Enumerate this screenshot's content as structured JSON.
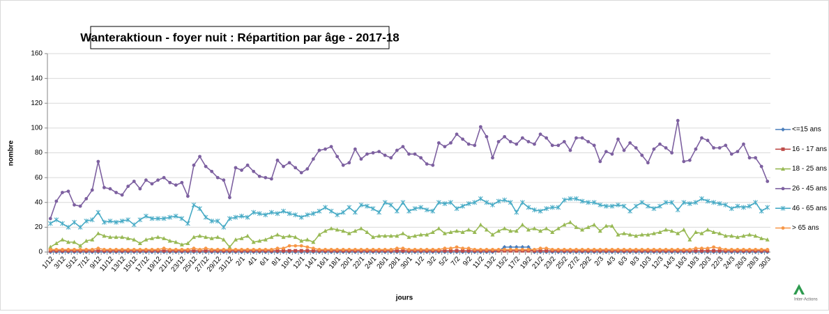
{
  "chart_data": {
    "type": "line",
    "title": "Wanteraktioun - foyer nuit : Répartition par âge - 2017-18",
    "ylabel": "nombre",
    "xlabel": "jours",
    "logo": "Inter-Actions",
    "ylim": [
      0,
      160
    ],
    "yticks": [
      0,
      20,
      40,
      60,
      80,
      100,
      120,
      140,
      160
    ],
    "grid": true,
    "legend": "right",
    "categories": [
      "1/12",
      null,
      "3/12",
      null,
      "5/12",
      null,
      "7/12",
      null,
      "9/12",
      null,
      "11/12",
      null,
      "13/12",
      null,
      "15/12",
      null,
      "17/12",
      null,
      "19/12",
      null,
      "21/12",
      null,
      "23/12",
      null,
      "25/12",
      null,
      "27/12",
      null,
      "29/12",
      null,
      "31/12",
      null,
      "2/1",
      null,
      "4/1",
      null,
      "6/1",
      null,
      "8/1",
      null,
      "10/1",
      null,
      "12/1",
      null,
      "14/1",
      null,
      "16/1",
      null,
      "18/1",
      null,
      "20/1",
      null,
      "22/1",
      null,
      "24/1",
      null,
      "26/1",
      null,
      "28/1",
      null,
      "30/1",
      null,
      "1/2",
      null,
      "3/2",
      null,
      "5/2",
      null,
      "7/2",
      null,
      "9/2",
      null,
      "11/2",
      null,
      "13/2",
      null,
      "15/2",
      null,
      "17/2",
      null,
      "19/2",
      null,
      "21/2",
      null,
      "23/2",
      null,
      "25/2",
      null,
      "27/2",
      null,
      "29/2",
      null,
      "2/3",
      null,
      "4/3",
      null,
      "6/3",
      null,
      "8/3",
      null,
      "10/3",
      null,
      "12/3",
      null,
      "14/3",
      null,
      "16/3",
      null,
      "18/3",
      null,
      "20/3",
      null,
      "22/3",
      null,
      "24/3",
      null,
      "26/3",
      null,
      "28/3",
      null,
      "30/3"
    ],
    "series": [
      {
        "name": "<=15 ans",
        "color": "#4a7ebb",
        "marker": "diamond",
        "values": [
          0,
          0,
          0,
          0,
          0,
          0,
          0,
          0,
          0,
          0,
          0,
          0,
          0,
          0,
          0,
          0,
          0,
          0,
          0,
          0,
          0,
          0,
          0,
          0,
          0,
          0,
          0,
          0,
          0,
          0,
          0,
          0,
          0,
          0,
          0,
          0,
          0,
          0,
          0,
          0,
          0,
          0,
          0,
          0,
          0,
          0,
          0,
          0,
          0,
          0,
          0,
          0,
          0,
          0,
          0,
          0,
          0,
          0,
          0,
          0,
          0,
          0,
          0,
          0,
          0,
          0,
          0,
          0,
          0,
          0,
          0,
          0,
          0,
          0,
          0,
          1,
          4,
          4,
          4,
          4,
          4,
          0,
          0,
          0,
          0,
          0,
          0,
          0,
          0,
          0,
          0,
          0,
          0,
          0,
          0,
          0,
          0,
          0,
          0,
          0,
          0,
          0,
          0,
          0,
          0,
          0,
          0,
          0,
          0,
          0,
          0,
          0,
          0,
          0,
          0,
          0,
          0,
          0,
          0,
          0,
          0
        ]
      },
      {
        "name": "16 - 17 ans",
        "color": "#be4b48",
        "marker": "square",
        "values": [
          1,
          1,
          1,
          1,
          1,
          1,
          1,
          1,
          1,
          1,
          1,
          1,
          1,
          1,
          1,
          1,
          1,
          1,
          1,
          1,
          1,
          1,
          1,
          1,
          1,
          1,
          1,
          1,
          1,
          1,
          1,
          1,
          1,
          1,
          1,
          1,
          1,
          1,
          1,
          1,
          1,
          1,
          1,
          1,
          1,
          1,
          1,
          1,
          1,
          1,
          1,
          1,
          1,
          1,
          1,
          1,
          1,
          1,
          1,
          1,
          1,
          1,
          1,
          1,
          1,
          1,
          1,
          1,
          1,
          1,
          1,
          1,
          1,
          1,
          1,
          1,
          1,
          1,
          1,
          1,
          1,
          1,
          1,
          1,
          1,
          1,
          1,
          1,
          1,
          1,
          1,
          1,
          1,
          1,
          1,
          1,
          1,
          1,
          1,
          1,
          1,
          1,
          1,
          1,
          1,
          1,
          1,
          1,
          1,
          1,
          1,
          1,
          1,
          1,
          1,
          1,
          1,
          1,
          1,
          1,
          1
        ]
      },
      {
        "name": "18 - 25 ans",
        "color": "#98b954",
        "marker": "triangle",
        "values": [
          4,
          7,
          10,
          8,
          8,
          5,
          9,
          10,
          15,
          13,
          12,
          12,
          12,
          11,
          10,
          7,
          10,
          11,
          12,
          11,
          9,
          8,
          6,
          7,
          12,
          13,
          12,
          11,
          12,
          10,
          4,
          10,
          11,
          13,
          8,
          9,
          10,
          12,
          14,
          12,
          13,
          12,
          9,
          10,
          8,
          14,
          17,
          19,
          18,
          17,
          15,
          17,
          19,
          16,
          12,
          13,
          13,
          13,
          13,
          15,
          12,
          13,
          14,
          14,
          16,
          19,
          15,
          16,
          17,
          16,
          18,
          16,
          22,
          18,
          14,
          17,
          19,
          17,
          17,
          22,
          18,
          19,
          17,
          19,
          16,
          19,
          22,
          24,
          20,
          18,
          20,
          22,
          17,
          21,
          21,
          14,
          15,
          14,
          13,
          14,
          14,
          15,
          16,
          18,
          17,
          15,
          18,
          10,
          16,
          15,
          18,
          16,
          15,
          13,
          13,
          12,
          13,
          14,
          13,
          11,
          10
        ]
      },
      {
        "name": "26 - 45 ans",
        "color": "#7d60a0",
        "marker": "circle",
        "values": [
          27,
          41,
          48,
          49,
          38,
          37,
          43,
          50,
          73,
          52,
          51,
          48,
          46,
          53,
          57,
          51,
          58,
          55,
          58,
          60,
          56,
          54,
          56,
          45,
          70,
          77,
          69,
          65,
          60,
          58,
          44,
          68,
          66,
          70,
          65,
          61,
          60,
          59,
          74,
          69,
          72,
          68,
          64,
          67,
          75,
          82,
          83,
          85,
          77,
          70,
          72,
          83,
          75,
          79,
          80,
          81,
          78,
          76,
          82,
          85,
          79,
          79,
          76,
          71,
          70,
          88,
          85,
          88,
          95,
          91,
          87,
          86,
          101,
          93,
          76,
          89,
          93,
          89,
          87,
          92,
          89,
          87,
          95,
          92,
          86,
          86,
          89,
          82,
          92,
          92,
          89,
          86,
          73,
          81,
          79,
          91,
          82,
          88,
          84,
          78,
          72,
          83,
          87,
          84,
          80,
          106,
          73,
          74,
          83,
          92,
          90,
          84,
          84,
          86,
          79,
          81,
          87,
          76,
          76,
          69,
          57
        ]
      },
      {
        "name": "46 - 65 ans",
        "color": "#46aac5",
        "marker": "star",
        "values": [
          23,
          26,
          23,
          20,
          24,
          20,
          25,
          26,
          32,
          24,
          25,
          24,
          25,
          26,
          22,
          26,
          29,
          27,
          27,
          27,
          28,
          29,
          27,
          23,
          38,
          35,
          28,
          25,
          25,
          20,
          27,
          28,
          29,
          28,
          32,
          31,
          30,
          32,
          31,
          33,
          31,
          30,
          28,
          30,
          31,
          33,
          36,
          33,
          30,
          32,
          36,
          32,
          38,
          37,
          35,
          32,
          40,
          38,
          33,
          40,
          33,
          35,
          36,
          34,
          33,
          40,
          39,
          40,
          35,
          37,
          39,
          40,
          43,
          40,
          38,
          41,
          42,
          40,
          32,
          40,
          36,
          34,
          33,
          35,
          36,
          36,
          42,
          43,
          43,
          41,
          40,
          40,
          38,
          37,
          37,
          38,
          37,
          33,
          37,
          40,
          37,
          35,
          37,
          40,
          40,
          34,
          40,
          39,
          40,
          43,
          41,
          40,
          39,
          38,
          35,
          37,
          36,
          37,
          40,
          33,
          36
        ]
      },
      {
        "name": "> 65 ans",
        "color": "#f79646",
        "marker": "circle",
        "values": [
          2,
          2,
          2,
          2,
          2,
          2,
          2,
          2,
          3,
          2,
          2,
          2,
          2,
          2,
          2,
          2,
          2,
          2,
          2,
          3,
          2,
          2,
          2,
          2,
          3,
          2,
          3,
          2,
          2,
          2,
          2,
          2,
          2,
          2,
          2,
          2,
          2,
          2,
          3,
          3,
          5,
          5,
          5,
          4,
          3,
          2,
          2,
          2,
          2,
          2,
          2,
          2,
          2,
          2,
          2,
          2,
          2,
          2,
          3,
          3,
          2,
          2,
          2,
          2,
          2,
          2,
          3,
          3,
          4,
          3,
          3,
          2,
          2,
          2,
          2,
          2,
          2,
          2,
          2,
          2,
          2,
          2,
          3,
          3,
          2,
          2,
          2,
          2,
          2,
          2,
          2,
          2,
          2,
          2,
          2,
          2,
          2,
          2,
          2,
          2,
          2,
          2,
          2,
          2,
          2,
          2,
          2,
          2,
          3,
          3,
          3,
          4,
          3,
          2,
          2,
          2,
          2,
          2,
          2,
          2,
          2
        ]
      }
    ]
  }
}
